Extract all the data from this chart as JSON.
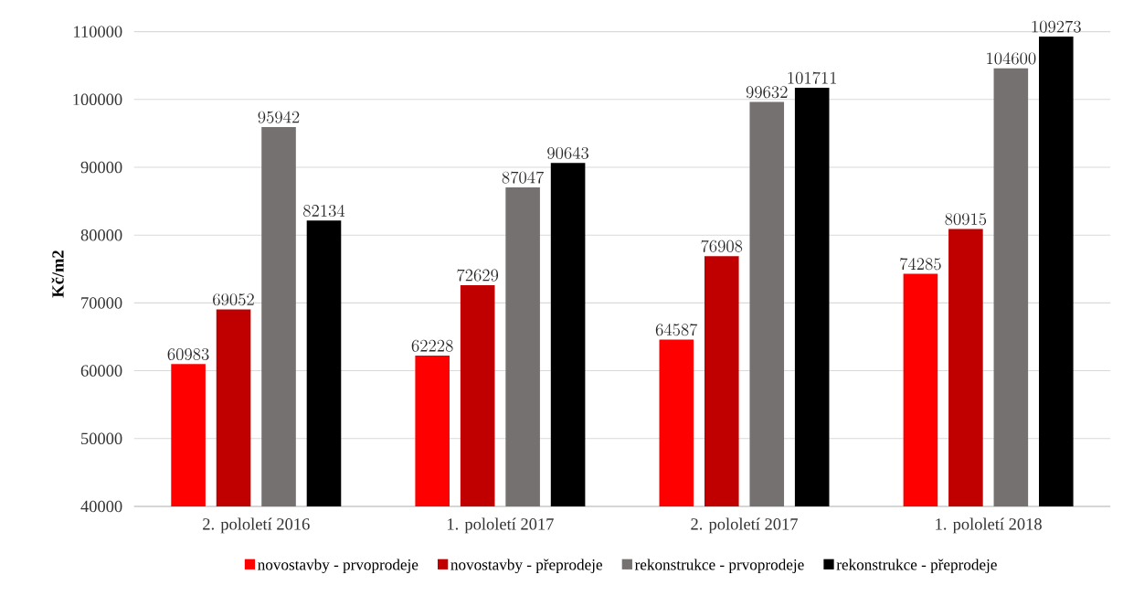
{
  "chart_data": {
    "type": "bar",
    "ylabel": "**Kč/m2**",
    "categories": [
      "2. pololetí 2016",
      "1. pololetí 2017",
      "2. pololetí 2017",
      "1. pololetí 2018"
    ],
    "series": [
      {
        "name": "novostavby - prvoprodeje",
        "color": "#ff0000",
        "values": [
          60983,
          62228,
          64587,
          74285
        ]
      },
      {
        "name": "novostavby - přeprodeje",
        "color": "#c00000",
        "values": [
          69052,
          72629,
          76908,
          80915
        ]
      },
      {
        "name": "rekonstrukce - prvoprodeje",
        "color": "#767171",
        "values": [
          95942,
          87047,
          99632,
          104600
        ]
      },
      {
        "name": "rekonstrukce - přeprodeje",
        "color": "#000000",
        "values": [
          82134,
          90643,
          101711,
          109273
        ]
      }
    ],
    "ylim": [
      40000,
      110000
    ],
    "yticks": [
      40000,
      50000,
      60000,
      70000,
      80000,
      90000,
      100000,
      110000
    ],
    "grid": "y",
    "legend": "bottom",
    "data_labels": true
  }
}
